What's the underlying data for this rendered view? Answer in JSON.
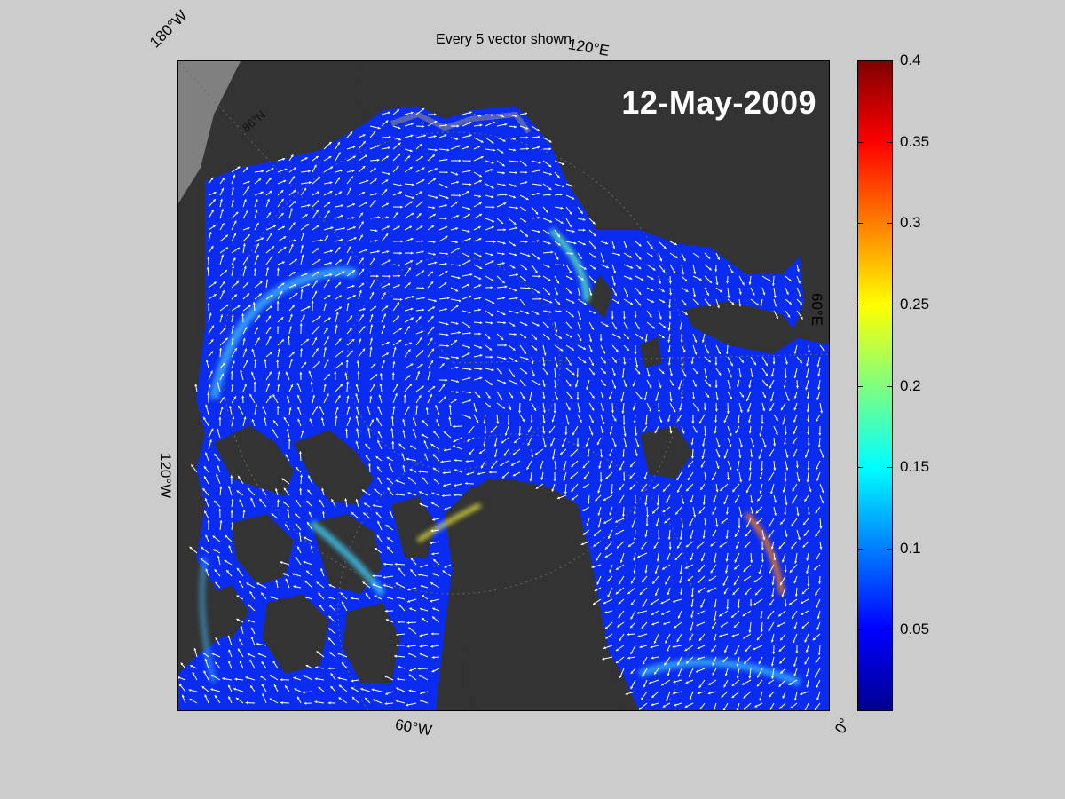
{
  "title": "Every 5 vector shown",
  "date": "12-May-2009",
  "axis_labels": {
    "lon_180w": "180°W",
    "lon_120e": "120°E",
    "lon_60e": "60°E",
    "lon_120w": "120°W",
    "lon_60w": "60°W",
    "lon_0": "0°",
    "lat_86n": "86°N"
  },
  "colorbar": {
    "ticks": [
      "0.4",
      "0.35",
      "0.3",
      "0.25",
      "0.2",
      "0.15",
      "0.1",
      "0.05"
    ],
    "tick_values": [
      0.4,
      0.35,
      0.3,
      0.25,
      0.2,
      0.15,
      0.1,
      0.05
    ],
    "min": 0,
    "max": 0.4,
    "colormap": "jet"
  },
  "colors": {
    "background": "#cccccc",
    "land": "#333333",
    "ice_base": "#0a2cf0",
    "vectors": "#ffffff"
  }
}
